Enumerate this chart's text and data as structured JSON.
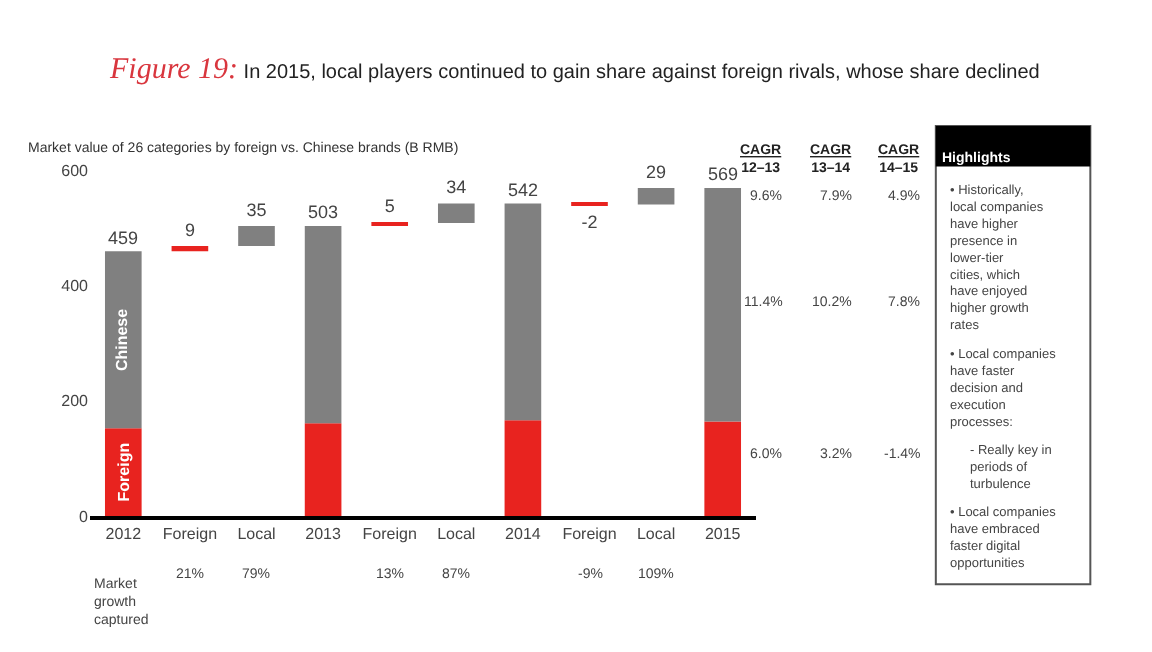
{
  "chart_data": {
    "type": "bar",
    "stacked": true,
    "title": "Figure 19: In 2015, local players continued to gain share against foreign rivals, whose share declined",
    "ylabel": "Market value of 26 categories by foreign vs. Chinese brands (B RMB)",
    "categories": [
      "2012",
      "Foreign",
      "Local",
      "2013",
      "Foreign",
      "Local",
      "2014",
      "Foreign",
      "Local",
      "2015"
    ],
    "series": [
      {
        "name": "Foreign",
        "color": "#e8231f",
        "values": [
          152,
          null,
          null,
          161,
          null,
          null,
          166,
          null,
          null,
          164
        ]
      },
      {
        "name": "Chinese",
        "color": "#808080",
        "values": [
          307,
          null,
          null,
          342,
          null,
          null,
          376,
          null,
          null,
          405
        ]
      },
      {
        "colors": [
          null,
          "#e8231f",
          "#808080",
          null,
          "#e8231f",
          "#808080",
          null,
          "#e8231f",
          "#808080",
          null
        ],
        "values": [
          null,
          9,
          35,
          null,
          5,
          34,
          null,
          -2,
          29,
          null
        ],
        "base": [
          null,
          459,
          468,
          null,
          503,
          508,
          null,
          542,
          540,
          null
        ],
        "value_labels": [
          null,
          "9",
          "35",
          null,
          "5",
          "34",
          null,
          "-2",
          "29",
          null
        ]
      }
    ],
    "totals": [
      "459",
      null,
      null,
      "503",
      null,
      null,
      "542",
      null,
      null,
      "569"
    ],
    "ylim": [
      0,
      600
    ],
    "yticks": [
      0,
      200,
      400,
      600
    ],
    "legend": false,
    "annotations": [
      "CAGR 12–13",
      "CAGR 13–14",
      "CAGR 14–15",
      "9.6%",
      "7.9%",
      "4.9%",
      "11.4%",
      "10.2%",
      "7.8%",
      "6.0%",
      "3.2%",
      "-1.4%",
      "Market growth captured",
      "21%",
      "79%",
      "13%",
      "87%",
      "-9%",
      "109%",
      "Highlights",
      "• Historically, local companies have higher presence in lower-tier cities, which have enjoyed higher growth rates",
      "• Local companies have faster decision and execution processes:",
      "- Really key in periods of turbulence",
      "• Local companies have embraced faster digital opportunities"
    ]
  }
}
